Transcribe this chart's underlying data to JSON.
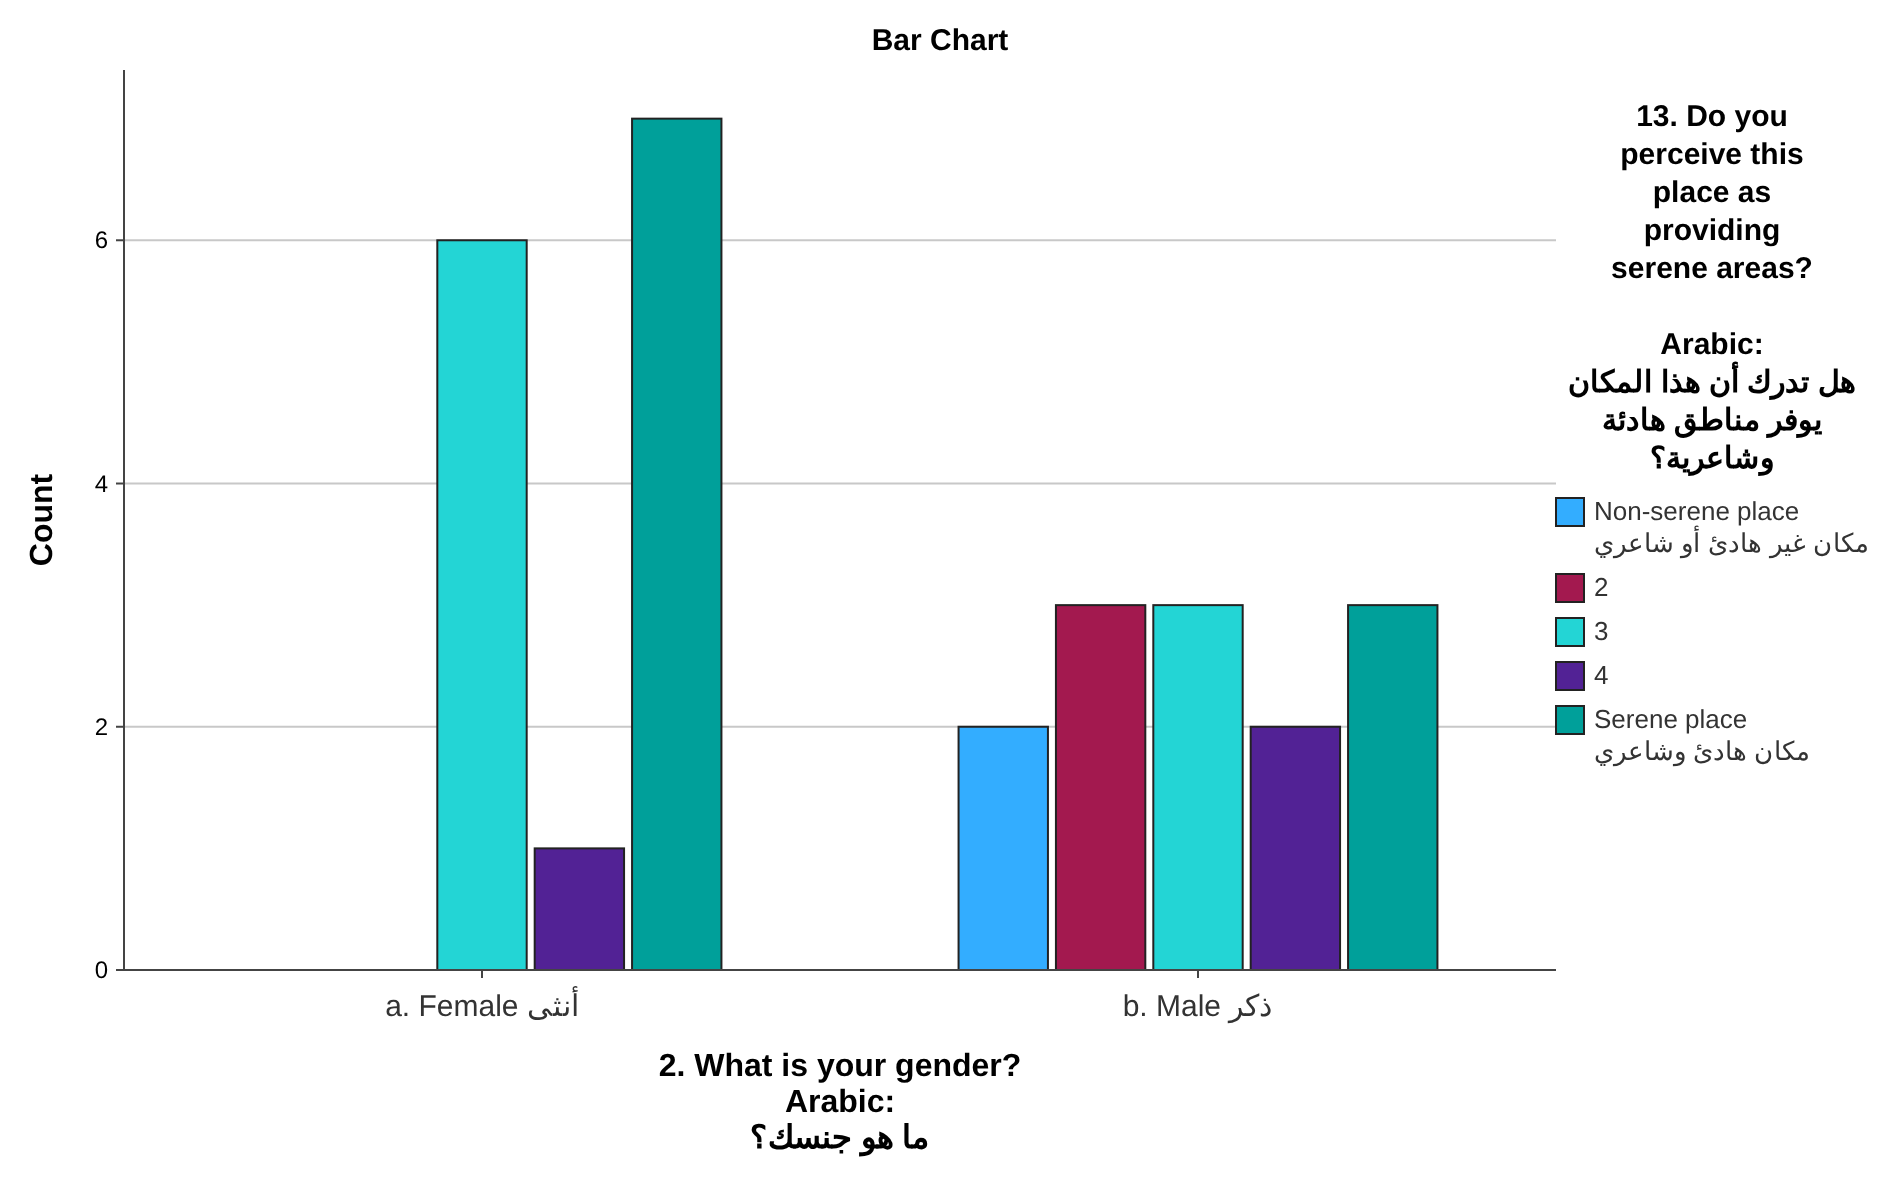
{
  "chart_data": {
    "type": "bar",
    "title": "Bar Chart",
    "xlabel": "2. What is your gender?\nArabic:\nما هو جنسك؟",
    "ylabel": "Count",
    "legend_title": "13. Do you\nperceive this\nplace as\nproviding\nserene areas?\n\nArabic:\nهل تدرك أن هذا المكان\nيوفر مناطق هادئة\nوشاعرية؟",
    "categories": [
      "a. Female أنثى",
      "b. Male ذكر"
    ],
    "series": [
      {
        "name": "Non-serene place\nمكان غير هادئ أو شاعري",
        "color": "#33adff",
        "values": [
          null,
          2
        ]
      },
      {
        "name": "2",
        "color": "#a3194f",
        "values": [
          null,
          3
        ]
      },
      {
        "name": "3",
        "color": "#23d5d5",
        "values": [
          6,
          3
        ]
      },
      {
        "name": "4",
        "color": "#522295",
        "values": [
          1,
          2
        ]
      },
      {
        "name": "Serene place\nمكان هادئ وشاعري",
        "color": "#00a09a",
        "values": [
          7,
          3
        ]
      }
    ],
    "ylim": [
      0,
      7.4
    ],
    "yticks": [
      0,
      2,
      4,
      6
    ],
    "grid": "y",
    "legend": "right"
  }
}
